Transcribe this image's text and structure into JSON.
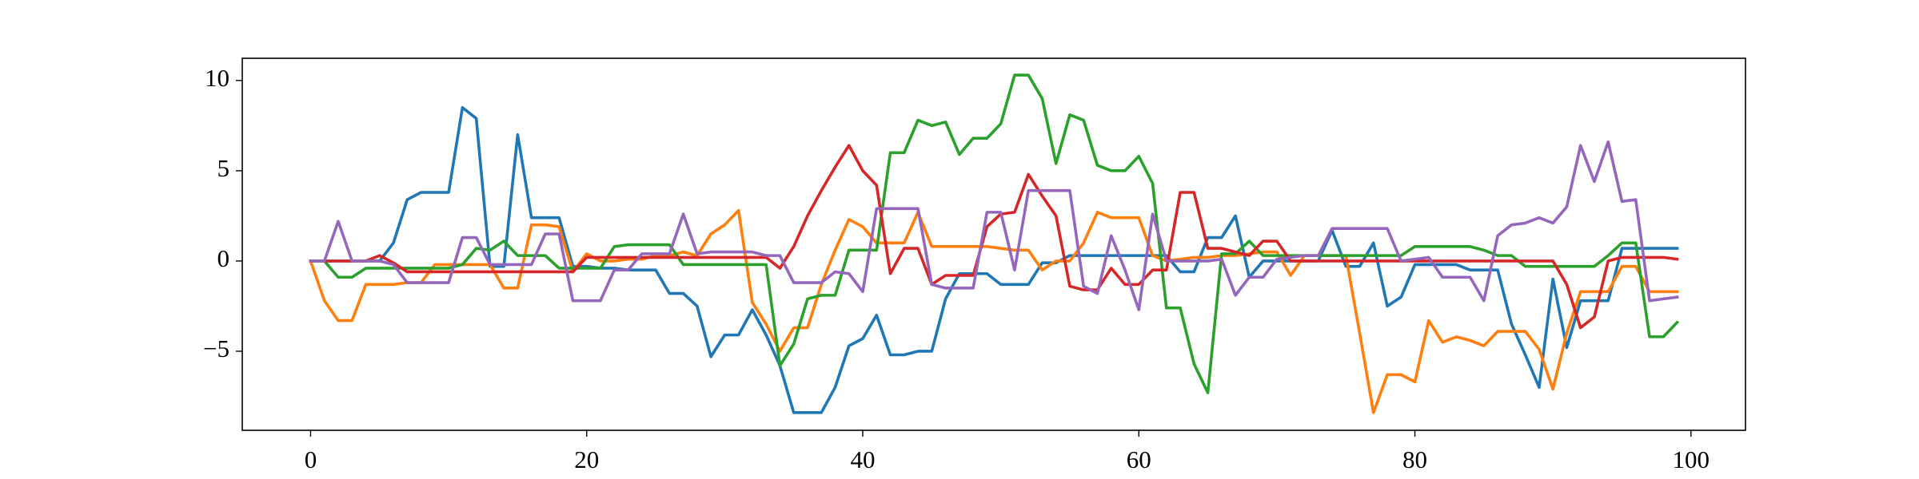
{
  "chart_data": {
    "type": "line",
    "x": [
      0,
      1,
      2,
      3,
      4,
      5,
      6,
      7,
      8,
      9,
      10,
      11,
      12,
      13,
      14,
      15,
      16,
      17,
      18,
      19,
      20,
      21,
      22,
      23,
      24,
      25,
      26,
      27,
      28,
      29,
      30,
      31,
      32,
      33,
      34,
      35,
      36,
      37,
      38,
      39,
      40,
      41,
      42,
      43,
      44,
      45,
      46,
      47,
      48,
      49,
      50,
      51,
      52,
      53,
      54,
      55,
      56,
      57,
      58,
      59,
      60,
      61,
      62,
      63,
      64,
      65,
      66,
      67,
      68,
      69,
      70,
      71,
      72,
      73,
      74,
      75,
      76,
      77,
      78,
      79,
      80,
      81,
      82,
      83,
      84,
      85,
      86,
      87,
      88,
      89,
      90,
      91,
      92,
      93,
      94,
      95,
      96,
      97,
      98,
      99
    ],
    "series": [
      {
        "color": "#1f77b4",
        "values": [
          0,
          0,
          0,
          0,
          0,
          0,
          1,
          3.4,
          3.8,
          3.8,
          3.8,
          8.5,
          7.9,
          -0.3,
          -0.3,
          7,
          2.4,
          2.4,
          2.4,
          -0.3,
          -0.3,
          -0.4,
          -0.4,
          -0.5,
          -0.5,
          -0.5,
          -1.8,
          -1.8,
          -2.5,
          -5.3,
          -4.1,
          -4.1,
          -2.7,
          -4.1,
          -5.8,
          -8.4,
          -8.4,
          -8.4,
          -7,
          -4.7,
          -4.3,
          -3,
          -5.2,
          -5.2,
          -5,
          -5,
          -2.1,
          -0.7,
          -0.7,
          -0.7,
          -1.3,
          -1.3,
          -1.3,
          -0.1,
          -0.1,
          0.3,
          0.3,
          0.3,
          0.3,
          0.3,
          0.3,
          0.3,
          0.3,
          -0.6,
          -0.6,
          1.3,
          1.3,
          2.5,
          -0.9,
          0,
          0,
          0,
          0,
          0,
          1.7,
          -0.3,
          -0.3,
          1,
          -2.5,
          -2,
          -0.2,
          -0.2,
          -0.2,
          -0.2,
          -0.5,
          -0.5,
          -0.5,
          -3.5,
          -5.2,
          -7,
          -1,
          -4.8,
          -2.2,
          -2.2,
          -2.2,
          0.7,
          0.7,
          0.7,
          0.7,
          0.7
        ]
      },
      {
        "color": "#ff7f0e",
        "values": [
          0,
          -2.2,
          -3.3,
          -3.3,
          -1.3,
          -1.3,
          -1.3,
          -1.2,
          -1.2,
          -0.2,
          -0.2,
          -0.2,
          -0.2,
          -0.2,
          -1.5,
          -1.5,
          2,
          2,
          1.9,
          -0.6,
          0.4,
          0,
          0,
          0.1,
          0.1,
          0.3,
          0.3,
          0.5,
          0.3,
          1.5,
          2,
          2.8,
          -2.3,
          -3.5,
          -5,
          -3.7,
          -3.7,
          -1.3,
          0.6,
          2.3,
          1.9,
          1,
          1,
          1,
          2.7,
          0.8,
          0.8,
          0.8,
          0.8,
          0.8,
          0.7,
          0.6,
          0.6,
          -0.5,
          0,
          0,
          1,
          2.7,
          2.4,
          2.4,
          2.4,
          0.3,
          0,
          0.1,
          0.2,
          0.2,
          0.3,
          0.3,
          0.4,
          0.5,
          0.5,
          -0.8,
          0.3,
          0.3,
          0.3,
          0.3,
          -4,
          -8.4,
          -6.3,
          -6.3,
          -6.7,
          -3.3,
          -4.5,
          -4.2,
          -4.4,
          -4.7,
          -3.9,
          -3.9,
          -3.9,
          -4.9,
          -7.1,
          -4,
          -1.7,
          -1.7,
          -1.7,
          -0.3,
          -0.3,
          -1.7,
          -1.7,
          -1.7
        ]
      },
      {
        "color": "#2ca02c",
        "values": [
          0,
          0,
          -0.9,
          -0.9,
          -0.4,
          -0.4,
          -0.4,
          -0.4,
          -0.4,
          -0.4,
          -0.4,
          -0.2,
          0.7,
          0.6,
          1.1,
          0.3,
          0.3,
          0.3,
          -0.4,
          -0.4,
          -0.4,
          -0.4,
          0.8,
          0.9,
          0.9,
          0.9,
          0.9,
          -0.2,
          -0.2,
          -0.2,
          -0.2,
          -0.2,
          -0.2,
          -0.2,
          -5.8,
          -4.6,
          -2.1,
          -1.9,
          -1.9,
          0.6,
          0.6,
          0.6,
          6,
          6,
          7.8,
          7.5,
          7.7,
          5.9,
          6.8,
          6.8,
          7.6,
          10.3,
          10.3,
          9,
          5.4,
          8.1,
          7.8,
          5.3,
          5,
          5,
          5.8,
          4.3,
          -2.6,
          -2.6,
          -5.7,
          -7.3,
          0.4,
          0.4,
          1.1,
          0.3,
          0.3,
          0.3,
          0.3,
          0.3,
          0.3,
          0.3,
          0.3,
          0.3,
          0.3,
          0.3,
          0.8,
          0.8,
          0.8,
          0.8,
          0.8,
          0.6,
          0.3,
          0.3,
          -0.3,
          -0.3,
          -0.3,
          -0.3,
          -0.3,
          -0.3,
          0.3,
          1,
          1,
          -4.2,
          -4.2,
          -3.4
        ]
      },
      {
        "color": "#d62728",
        "values": [
          0,
          0,
          0,
          0,
          0,
          0.3,
          -0.1,
          -0.6,
          -0.6,
          -0.6,
          -0.6,
          -0.6,
          -0.6,
          -0.6,
          -0.6,
          -0.6,
          -0.6,
          -0.6,
          -0.6,
          -0.6,
          0.2,
          0.2,
          0.2,
          0.2,
          0.2,
          0.2,
          0.2,
          0.2,
          0.2,
          0.2,
          0.2,
          0.2,
          0.2,
          0.2,
          -0.4,
          0.8,
          2.5,
          3.9,
          5.2,
          6.4,
          5,
          4.2,
          -0.7,
          0.7,
          0.7,
          -1.3,
          -0.8,
          -0.8,
          -0.8,
          1.9,
          2.6,
          2.7,
          4.8,
          3.6,
          2.5,
          -1.4,
          -1.6,
          -1.6,
          -0.4,
          -1.3,
          -1.3,
          -0.5,
          -0.5,
          3.8,
          3.8,
          0.7,
          0.7,
          0.5,
          0.3,
          1.1,
          1.1,
          0,
          0,
          0,
          0,
          0,
          0,
          0,
          0,
          0,
          0,
          0,
          0,
          0,
          0,
          0,
          0,
          0,
          0,
          0,
          0,
          -1.3,
          -3.7,
          -3.1,
          0,
          0.2,
          0.2,
          0.2,
          0.2,
          0.1
        ]
      },
      {
        "color": "#9467bd",
        "values": [
          0,
          0,
          2.2,
          0,
          0,
          0,
          -0.2,
          -1.2,
          -1.2,
          -1.2,
          -1.2,
          1.3,
          1.3,
          -0.2,
          -0.2,
          -0.2,
          -0.2,
          1.5,
          1.5,
          -2.2,
          -2.2,
          -2.2,
          -0.5,
          -0.5,
          0.4,
          0.4,
          0.4,
          2.6,
          0.4,
          0.5,
          0.5,
          0.5,
          0.5,
          0.3,
          0.3,
          -1.2,
          -1.2,
          -1.2,
          -0.6,
          -0.7,
          -1.7,
          2.9,
          2.9,
          2.9,
          2.9,
          -1.3,
          -1.5,
          -1.5,
          -1.5,
          2.7,
          2.7,
          -0.5,
          3.9,
          3.9,
          3.9,
          3.9,
          -1.4,
          -1.8,
          1.4,
          -0.5,
          -2.7,
          2.6,
          0,
          0,
          0,
          0,
          0.1,
          -1.9,
          -0.9,
          -0.9,
          0.1,
          0.2,
          0.3,
          0.3,
          1.8,
          1.8,
          1.8,
          1.8,
          1.8,
          0,
          0.1,
          0.2,
          -0.9,
          -0.9,
          -0.9,
          -2.2,
          1.4,
          2,
          2.1,
          2.4,
          2.1,
          3,
          6.4,
          4.4,
          6.6,
          3.3,
          3.4,
          -2.2,
          -2.1,
          -2
        ]
      }
    ],
    "xlim": [
      -4.95,
      103.95
    ],
    "ylim": [
      -9.38,
      11.23
    ],
    "xticks": [
      0,
      20,
      40,
      60,
      80,
      100
    ],
    "yticks": [
      {
        "value": -5,
        "label": "−5"
      },
      0,
      5,
      10
    ]
  }
}
